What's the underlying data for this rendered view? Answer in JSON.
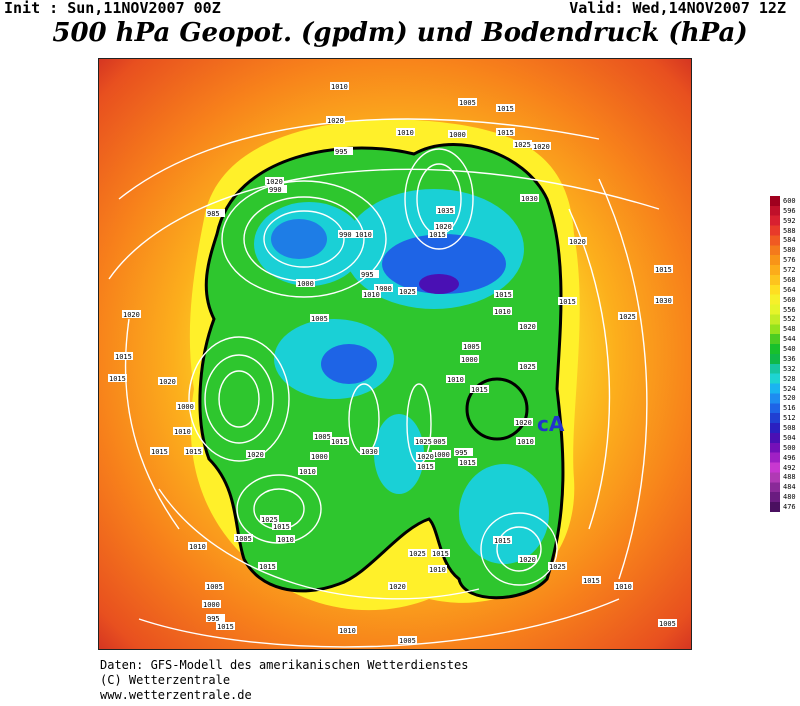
{
  "header": {
    "init": "Init : Sun,11NOV2007 00Z",
    "valid": "Valid: Wed,14NOV2007 12Z",
    "title": "500 hPa Geopot. (gpdm) und Bodendruck (hPa)"
  },
  "map": {
    "annotation": "cA",
    "annotation_color": "#2233cc",
    "isobar_labels": [
      "1015",
      "1010",
      "1020",
      "1005",
      "1000",
      "1015",
      "1025",
      "1030",
      "1020",
      "990",
      "985",
      "995",
      "990",
      "1000",
      "1005",
      "1010",
      "1015",
      "1020",
      "1020",
      "1015",
      "1015",
      "1030",
      "1025",
      "1035",
      "1020",
      "1015",
      "1010",
      "995",
      "1000",
      "1010",
      "1025",
      "1010",
      "1015",
      "1020",
      "1025",
      "1005",
      "1000",
      "1010",
      "1015",
      "1020",
      "1010",
      "1015",
      "1005",
      "1000",
      "995",
      "1025",
      "1020",
      "1015",
      "1005",
      "1000",
      "1010",
      "1015",
      "1030",
      "1020",
      "1025",
      "1015",
      "1010",
      "1005",
      "1010",
      "1015",
      "1005",
      "1000",
      "995",
      "1015",
      "1010",
      "1005",
      "1020",
      "1025",
      "1015",
      "1010",
      "1015",
      "1020",
      "1025",
      "1015",
      "1010",
      "1005",
      "1000",
      "1010",
      "1015",
      "1020",
      "1015",
      "1020",
      "1015"
    ]
  },
  "scale": {
    "labels": [
      "600",
      "596",
      "592",
      "588",
      "584",
      "580",
      "576",
      "572",
      "568",
      "564",
      "560",
      "556",
      "552",
      "548",
      "544",
      "540",
      "536",
      "532",
      "528",
      "524",
      "520",
      "516",
      "512",
      "508",
      "504",
      "500",
      "496",
      "492",
      "488",
      "484",
      "480",
      "476"
    ],
    "colors": [
      "#a0001e",
      "#c0102a",
      "#d82030",
      "#e83a2a",
      "#f05a22",
      "#f47a1c",
      "#f89418",
      "#fcac1a",
      "#fdc41e",
      "#fede22",
      "#f6f02a",
      "#e6f42a",
      "#c4ec26",
      "#94e21e",
      "#4ccc22",
      "#18c02c",
      "#10b848",
      "#18c6a0",
      "#1ed4d2",
      "#1ab4f0",
      "#1e8cf0",
      "#1e64e6",
      "#2040d2",
      "#2a20c0",
      "#4a10b4",
      "#7410b8",
      "#a020c4",
      "#c838d0",
      "#b03ab4",
      "#8a2a98",
      "#6a1c80",
      "#4a1060"
    ]
  },
  "footer": {
    "line1": "Daten: GFS-Modell des amerikanischen Wetterdienstes",
    "line2": "(C) Wetterzentrale",
    "line3": "www.wetterzentrale.de"
  }
}
